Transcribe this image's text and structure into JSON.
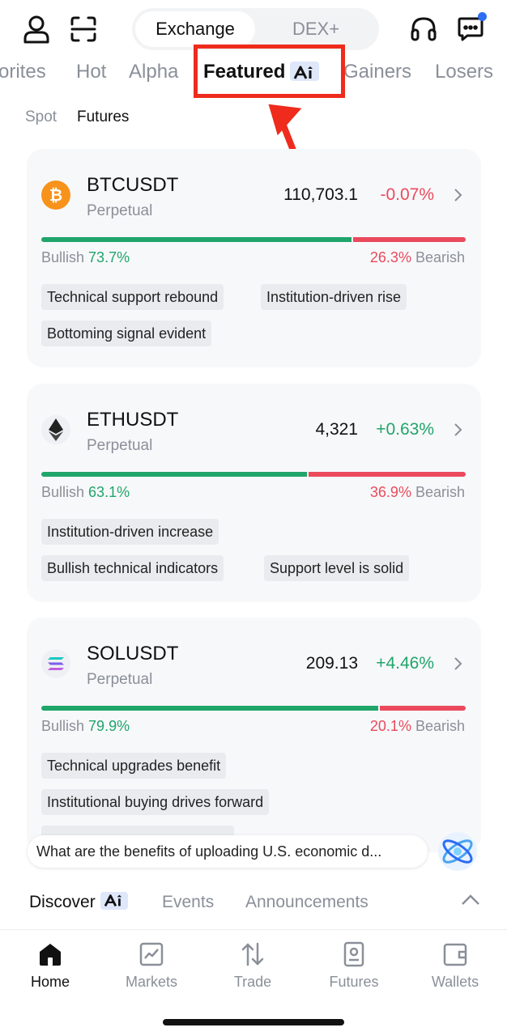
{
  "header": {
    "segments": [
      {
        "label": "Exchange",
        "active": true
      },
      {
        "label": "DEX+",
        "active": false
      }
    ],
    "icons": [
      "profile-icon",
      "scan-icon",
      "support-headset-icon",
      "messages-icon"
    ]
  },
  "category_tabs": [
    {
      "label": "orites",
      "active": false
    },
    {
      "label": "Hot",
      "active": false
    },
    {
      "label": "Alpha",
      "active": false
    },
    {
      "label": "Featured",
      "active": true,
      "badge": "ai-icon"
    },
    {
      "label": "Gainers",
      "active": false
    },
    {
      "label": "Losers",
      "active": false
    }
  ],
  "sub_tabs": [
    {
      "label": "Spot",
      "active": false
    },
    {
      "label": "Futures",
      "active": true
    }
  ],
  "cards": [
    {
      "symbol": "BTCUSDT",
      "subtitle": "Perpetual",
      "icon": "bitcoin-icon",
      "price": "110,703.1",
      "change": "-0.07%",
      "direction": "down",
      "bullish_label": "Bullish",
      "bullish_pct": "73.7%",
      "bullish_fraction": 0.737,
      "bearish_label": "Bearish",
      "bearish_pct": "26.3%",
      "tags": [
        "Technical support rebound",
        "Institution-driven rise",
        "Bottoming signal evident"
      ]
    },
    {
      "symbol": "ETHUSDT",
      "subtitle": "Perpetual",
      "icon": "ethereum-icon",
      "price": "4,321",
      "change": "+0.63%",
      "direction": "up",
      "bullish_label": "Bullish",
      "bullish_pct": "63.1%",
      "bullish_fraction": 0.631,
      "bearish_label": "Bearish",
      "bearish_pct": "36.9%",
      "tags": [
        "Institution-driven increase",
        "Bullish technical indicators",
        "Support level is solid"
      ]
    },
    {
      "symbol": "SOLUSDT",
      "subtitle": "Perpetual",
      "icon": "solana-icon",
      "price": "209.13",
      "change": "+4.46%",
      "direction": "up",
      "bullish_label": "Bullish",
      "bullish_pct": "79.9%",
      "bullish_fraction": 0.799,
      "bearish_label": "Bearish",
      "bearish_pct": "20.1%",
      "tags": [
        "Technical upgrades benefit",
        "Institutional buying drives forward"
      ]
    }
  ],
  "ask": {
    "text": "What are the benefits of uploading U.S. economic d..."
  },
  "discover_tabs": [
    {
      "label": "Discover",
      "active": true,
      "badge": "ai-icon"
    },
    {
      "label": "Events",
      "active": false
    },
    {
      "label": "Announcements",
      "active": false
    }
  ],
  "bottom_nav": [
    {
      "label": "Home",
      "icon": "home-icon",
      "active": true
    },
    {
      "label": "Markets",
      "icon": "markets-chart-icon",
      "active": false
    },
    {
      "label": "Trade",
      "icon": "trade-arrows-icon",
      "active": false
    },
    {
      "label": "Futures",
      "icon": "futures-doc-icon",
      "active": false
    },
    {
      "label": "Wallets",
      "icon": "wallet-icon",
      "active": false
    }
  ],
  "colors": {
    "bullish": "#20a56a",
    "bearish": "#ea4a5c",
    "annotation": "#ee2b1c",
    "notification": "#2d6cf5"
  }
}
